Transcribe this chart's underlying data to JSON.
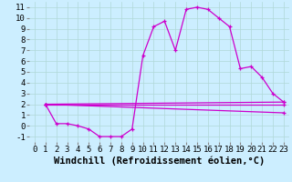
{
  "xlabel": "Windchill (Refroidissement éolien,°C)",
  "background_color": "#cceeff",
  "line_color": "#cc00cc",
  "xlim": [
    -0.5,
    23.5
  ],
  "ylim": [
    -1.5,
    11.5
  ],
  "xticks": [
    0,
    1,
    2,
    3,
    4,
    5,
    6,
    7,
    8,
    9,
    10,
    11,
    12,
    13,
    14,
    15,
    16,
    17,
    18,
    19,
    20,
    21,
    22,
    23
  ],
  "yticks": [
    -1,
    0,
    1,
    2,
    3,
    4,
    5,
    6,
    7,
    8,
    9,
    10,
    11
  ],
  "line1_x": [
    1,
    2,
    3,
    4,
    5,
    6,
    7,
    8,
    9,
    10,
    11,
    12,
    13,
    14,
    15,
    16,
    17,
    18,
    19,
    20,
    21,
    22,
    23
  ],
  "line1_y": [
    2.0,
    0.2,
    0.2,
    0.0,
    -0.3,
    -1.0,
    -1.0,
    -1.0,
    -0.3,
    6.5,
    9.2,
    9.7,
    7.0,
    10.8,
    11.0,
    10.8,
    10.0,
    9.2,
    5.3,
    5.5,
    4.5,
    3.0,
    2.2
  ],
  "line2_x": [
    1,
    23
  ],
  "line2_y": [
    2.0,
    2.2
  ],
  "line3_x": [
    1,
    23
  ],
  "line3_y": [
    2.0,
    2.0
  ],
  "line4_x": [
    1,
    23
  ],
  "line4_y": [
    2.0,
    1.2
  ],
  "grid_color": "#b0d8d8",
  "tick_fontsize": 6.5,
  "xlabel_fontsize": 7.5
}
